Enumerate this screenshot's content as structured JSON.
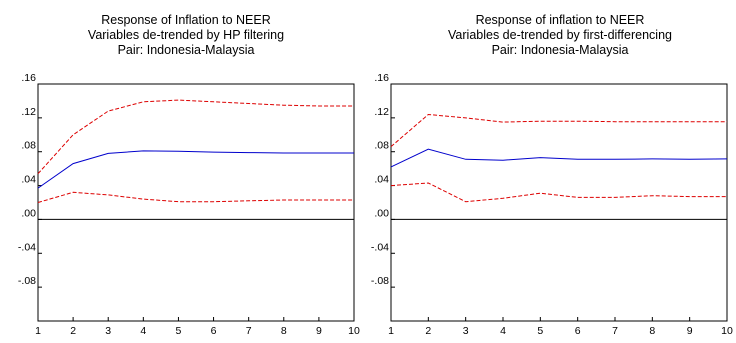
{
  "chart_data": [
    {
      "type": "line",
      "title": [
        "Response of Inflation to NEER",
        "Variables de-trended by HP filtering",
        "Pair: Indonesia-Malaysia"
      ],
      "x": [
        1,
        2,
        3,
        4,
        5,
        6,
        7,
        8,
        9,
        10
      ],
      "xticks": [
        "1",
        "2",
        "3",
        "4",
        "5",
        "6",
        "7",
        "8",
        "9",
        "10"
      ],
      "ylim": [
        -0.12,
        0.16
      ],
      "yticks": [
        0.16,
        0.12,
        0.08,
        0.04,
        0.0,
        -0.04,
        -0.08
      ],
      "ytick_labels": [
        ".16",
        ".12",
        ".08",
        ".04",
        ".00",
        "-.04",
        "-.08"
      ],
      "zero_line": true,
      "grid": false,
      "series": [
        {
          "role": "response",
          "color": "#0000cc",
          "dash": "solid",
          "values": [
            0.037,
            0.066,
            0.078,
            0.081,
            0.0805,
            0.0795,
            0.079,
            0.0785,
            0.0785,
            0.0785
          ]
        },
        {
          "role": "upper-band",
          "color": "#dd0000",
          "dash": "dashed",
          "values": [
            0.054,
            0.1,
            0.128,
            0.139,
            0.141,
            0.139,
            0.137,
            0.135,
            0.134,
            0.134
          ]
        },
        {
          "role": "lower-band",
          "color": "#dd0000",
          "dash": "dashed",
          "values": [
            0.02,
            0.032,
            0.029,
            0.024,
            0.021,
            0.021,
            0.022,
            0.023,
            0.023,
            0.023
          ]
        }
      ]
    },
    {
      "type": "line",
      "title": [
        "Response of inflation to NEER",
        "Variables de-trended by first-differencing",
        "Pair: Indonesia-Malaysia"
      ],
      "x": [
        1,
        2,
        3,
        4,
        5,
        6,
        7,
        8,
        9,
        10
      ],
      "xticks": [
        "1",
        "2",
        "3",
        "4",
        "5",
        "6",
        "7",
        "8",
        "9",
        "10"
      ],
      "ylim": [
        -0.12,
        0.16
      ],
      "yticks": [
        0.16,
        0.12,
        0.08,
        0.04,
        0.0,
        -0.04,
        -0.08
      ],
      "ytick_labels": [
        ".16",
        ".12",
        ".08",
        ".04",
        ".00",
        "-.04",
        "-.08"
      ],
      "zero_line": true,
      "grid": false,
      "series": [
        {
          "role": "response",
          "color": "#0000cc",
          "dash": "solid",
          "values": [
            0.062,
            0.083,
            0.071,
            0.07,
            0.073,
            0.071,
            0.071,
            0.0715,
            0.071,
            0.0715
          ]
        },
        {
          "role": "upper-band",
          "color": "#dd0000",
          "dash": "dashed",
          "values": [
            0.086,
            0.124,
            0.12,
            0.115,
            0.116,
            0.116,
            0.1155,
            0.1155,
            0.1155,
            0.1155
          ]
        },
        {
          "role": "lower-band",
          "color": "#dd0000",
          "dash": "dashed",
          "values": [
            0.04,
            0.043,
            0.021,
            0.025,
            0.031,
            0.026,
            0.026,
            0.028,
            0.027,
            0.027
          ]
        }
      ]
    }
  ]
}
